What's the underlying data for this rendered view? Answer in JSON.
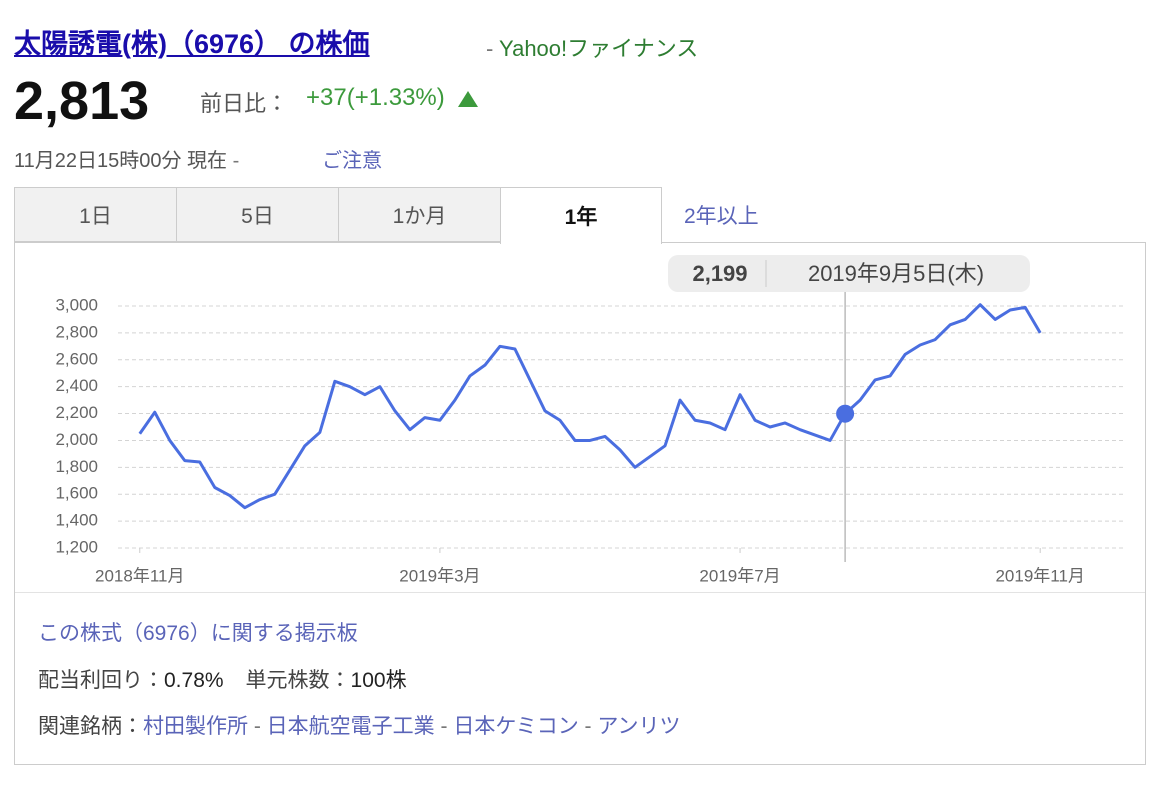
{
  "header": {
    "title": "太陽誘電(株)（6976） の株価",
    "source": "Yahoo!ファイナンス",
    "price": "2,813",
    "change_label": "前日比：",
    "change": "+37(+1.33%)",
    "time": "11月22日15時00分 現在",
    "notice": "ご注意"
  },
  "tabs": [
    "1日",
    "5日",
    "1か月",
    "1年",
    "2年以上"
  ],
  "chart_data": {
    "type": "line",
    "color": "#4a6ee0",
    "grid": true,
    "x": [
      0,
      0.2,
      0.4,
      0.6,
      0.8,
      1,
      1.2,
      1.4,
      1.6,
      1.8,
      2,
      2.2,
      2.4,
      2.6,
      2.8,
      3,
      3.2,
      3.4,
      3.6,
      3.8,
      4,
      4.2,
      4.4,
      4.6,
      4.8,
      5,
      5.2,
      5.4,
      5.6,
      5.8,
      6,
      6.2,
      6.4,
      6.6,
      6.8,
      7,
      7.2,
      7.4,
      7.6,
      7.8,
      8,
      8.2,
      8.4,
      8.6,
      8.8,
      9,
      9.2,
      9.4,
      9.6,
      9.8,
      10,
      10.2,
      10.4,
      10.6,
      10.8,
      11,
      11.2,
      11.4,
      11.6,
      11.8,
      12
    ],
    "values": [
      2050,
      2210,
      2000,
      1850,
      1840,
      1650,
      1590,
      1500,
      1560,
      1600,
      1780,
      1960,
      2060,
      2440,
      2400,
      2340,
      2400,
      2220,
      2080,
      2170,
      2150,
      2300,
      2480,
      2560,
      2700,
      2680,
      2450,
      2220,
      2150,
      2000,
      2000,
      2030,
      1930,
      1800,
      1880,
      1960,
      2300,
      2150,
      2130,
      2080,
      2340,
      2150,
      2100,
      2130,
      2080,
      2040,
      2000,
      2199,
      2300,
      2450,
      2480,
      2640,
      2710,
      2750,
      2860,
      2900,
      3010,
      2900,
      2970,
      2990,
      2800
    ],
    "xlim": [
      -0.29,
      13.13
    ],
    "xticks": [
      {
        "value": 0,
        "label": "2018年11月"
      },
      {
        "value": 4,
        "label": "2019年3月"
      },
      {
        "value": 8,
        "label": "2019年7月"
      },
      {
        "value": 12,
        "label": "2019年11月"
      }
    ],
    "ylim": [
      1200,
      3000
    ],
    "yticks": [
      {
        "value": 1200,
        "label": "1,200"
      },
      {
        "value": 1400,
        "label": "1,400"
      },
      {
        "value": 1600,
        "label": "1,600"
      },
      {
        "value": 1800,
        "label": "1,800"
      },
      {
        "value": 2000,
        "label": "2,000"
      },
      {
        "value": 2200,
        "label": "2,200"
      },
      {
        "value": 2400,
        "label": "2,400"
      },
      {
        "value": 2600,
        "label": "2,600"
      },
      {
        "value": 2800,
        "label": "2,800"
      },
      {
        "value": 3000,
        "label": "3,000"
      }
    ],
    "highlight": {
      "x": 9.4,
      "value": 2199,
      "label": "2,199",
      "date": "2019年9月5日(木)"
    }
  },
  "footer": {
    "board": "この株式（6976）に関する掲示板",
    "dividend_label": "配当利回り：",
    "dividend": "0.78%",
    "unit_label": "単元株数：",
    "unit": "100株",
    "related_label": "関連銘柄：",
    "related": [
      "村田製作所",
      "日本航空電子工業",
      "日本ケミコン",
      "アンリツ"
    ]
  }
}
